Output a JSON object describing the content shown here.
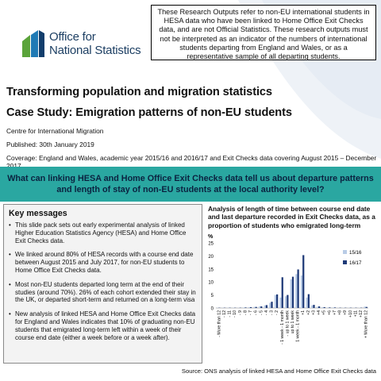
{
  "header": {
    "logo": {
      "line1": "Office for",
      "line2": "National Statistics",
      "colors": [
        "#5aa33a",
        "#1f7ab5",
        "#123e6c"
      ]
    },
    "disclaimer": "These Research Outputs refer to non-EU international students in HESA data who have been linked to Home Office Exit Checks data, and are not Official Statistics. These research outputs must not be interpreted as an indicator of the numbers of international students departing from England and Wales, or as a representative sample of all departing students."
  },
  "titles": {
    "title": "Transforming population and migration statistics",
    "subtitle": "Case Study: Emigration patterns of non-EU students"
  },
  "meta": {
    "centre": "Centre for International Migration",
    "published": "Published: 30th January 2019",
    "coverage": "Coverage: England and Wales, academic year 2015/16 and 2016/17 and Exit Checks data covering August 2015 – December 2017"
  },
  "question": "What can linking HESA and Home Office Exit Checks data tell us about departure patterns and length of stay of non-EU students at the local authority level?",
  "key_messages": {
    "heading": "Key messages",
    "items": [
      "This slide pack sets out early experimental analysis of linked Higher Education Statistics Agency (HESA) and Home Office Exit Checks data.",
      "We linked around 80% of HESA records with a course end date between August 2015 and July 2017, for non-EU students to Home Office Exit Checks data.",
      "Most non-EU students departed long term at the end of their studies (around 70%). 26% of each cohort extended their stay in the UK, or departed short-term and returned on a long-term visa",
      "New analysis of linked HESA and Home Office Exit Checks data for England and Wales indicates that 10% of graduating non-EU students that emigrated long-term left within a week of their course end date (either a week before or a week after)."
    ]
  },
  "chart_data": {
    "type": "bar",
    "title": "Analysis of length of time between course end date and last departure recorded in Exit Checks data, as a proportion of students who emigrated long-term",
    "ylabel": "%",
    "ylim": [
      0,
      25
    ],
    "yticks": [
      0,
      5,
      10,
      15,
      20,
      25
    ],
    "categories": [
      "- More than 12",
      "- 12",
      "- 11",
      "- 10",
      "- 9",
      "- 8",
      "- 7",
      "- 6",
      "- 5",
      "- 4",
      "- 3",
      "- 2",
      "- 1 week - 1 month",
      "- up to 1 week",
      "up to 1 week",
      "1 week - 1 month",
      "+1",
      "+2",
      "+3",
      "+4",
      "+5",
      "+6",
      "+7",
      "+8",
      "+9",
      "+10",
      "+11",
      "+12",
      "+ More than 12"
    ],
    "series": [
      {
        "name": "15/16",
        "color": "#b9cce6",
        "values": [
          0.1,
          0.1,
          0.1,
          0.1,
          0.1,
          0.2,
          0.3,
          0.4,
          0.6,
          1.0,
          2.0,
          5.0,
          4.0,
          4.5,
          11.0,
          13.0,
          12.5,
          4.0,
          1.0,
          0.5,
          0.3,
          0.2,
          0.2,
          0.1,
          0.1,
          0.1,
          0.1,
          0.1,
          0.5
        ]
      },
      {
        "name": "16/17",
        "color": "#1f3a78",
        "values": [
          0.1,
          0.1,
          0.1,
          0.1,
          0.1,
          0.2,
          0.3,
          0.4,
          0.6,
          1.1,
          2.4,
          5.2,
          11.8,
          5.0,
          12.0,
          14.8,
          20.3,
          5.3,
          1.2,
          0.6,
          0.3,
          0.2,
          0.2,
          0.1,
          0.1,
          0.1,
          0.1,
          0.1,
          0.4
        ]
      }
    ]
  },
  "source": "Source: ONS analysis of linked HESA and Home Office Exit Checks data"
}
